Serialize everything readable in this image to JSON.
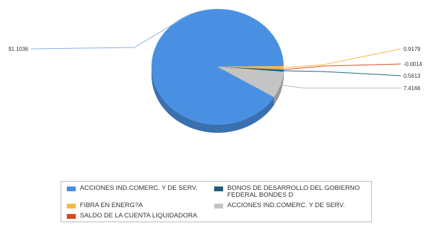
{
  "chart_data": {
    "type": "pie",
    "slices": [
      {
        "label": "ACCIONES IND.COMERC. Y DE SERV.",
        "value": 91.1036,
        "value_label": "91.1036",
        "color": "#4a90e2"
      },
      {
        "label": "FIBRA EN ENERG?A",
        "value": 0.9179,
        "value_label": "0.9179",
        "color": "#f5b942"
      },
      {
        "label": "SALDO DE LA CUENTA LIQUIDADORA",
        "value": -0.0014,
        "value_label": "-0.0014",
        "color": "#d9481f"
      },
      {
        "label": "BONOS DE DESARROLLO DEL GOBIERNO FEDERAL BONDES D",
        "value": 0.5613,
        "value_label": "0.5613",
        "color": "#1f5f7a"
      },
      {
        "label": "ACCIONES IND.COMERC. Y DE SERV.",
        "value": 7.4166,
        "value_label": "7.4166",
        "color": "#c4c4c4"
      }
    ],
    "legend": {
      "placement": "bottom",
      "entries": [
        {
          "label": "ACCIONES IND.COMERC. Y DE SERV.",
          "color": "#4a90e2"
        },
        {
          "label": "BONOS DE DESARROLLO DEL GOBIERNO FEDERAL BONDES D",
          "color": "#1f5f7a"
        },
        {
          "label": "FIBRA EN ENERG?A",
          "color": "#f5b942"
        },
        {
          "label": "ACCIONES IND.COMERC. Y DE SERV.",
          "color": "#c4c4c4"
        },
        {
          "label": "SALDO DE LA CUENTA LIQUIDADORA",
          "color": "#d9481f"
        }
      ]
    }
  }
}
